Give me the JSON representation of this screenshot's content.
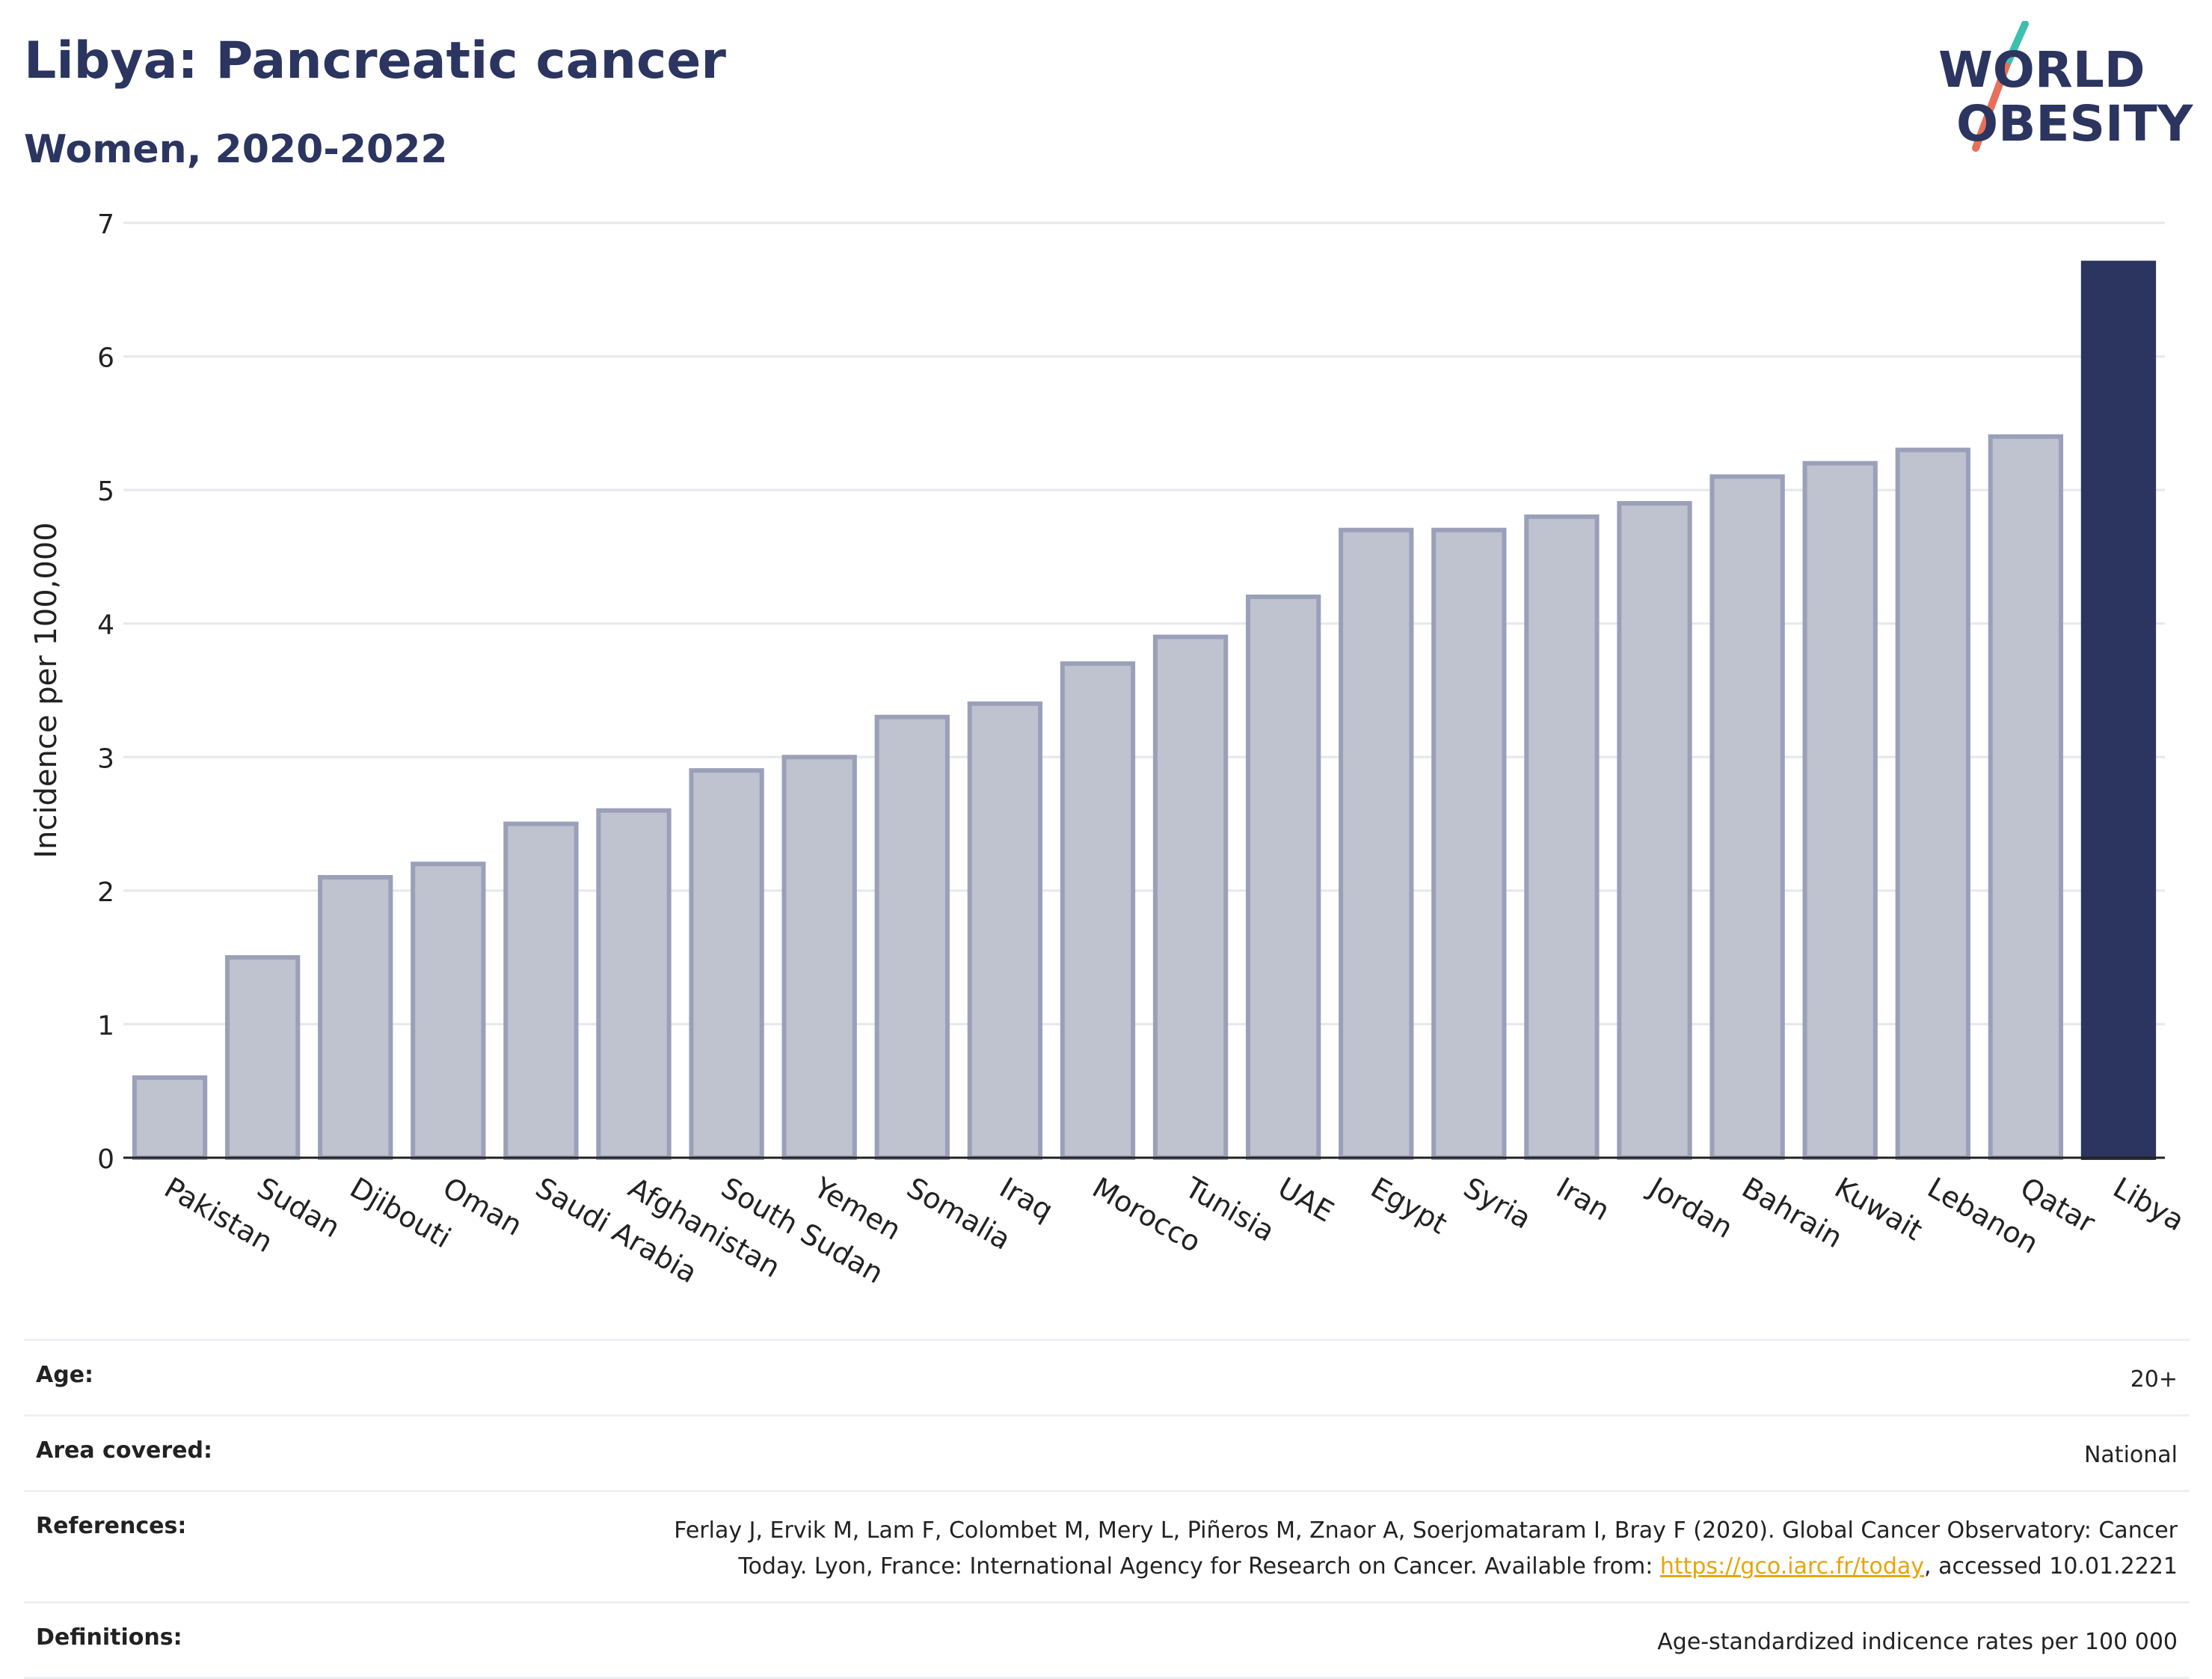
{
  "header": {
    "title": "Libya: Pancreatic cancer",
    "subtitle": "Women, 2020-2022"
  },
  "logo": {
    "line1": "WORLD",
    "line2": "OBESITY",
    "text_color": "#2b3560",
    "slash_top_color": "#3bbfb0",
    "slash_bottom_color": "#e8705a"
  },
  "chart_data": {
    "type": "bar",
    "ylabel": "Incidence per 100,000",
    "ylim": [
      0,
      7
    ],
    "yticks": [
      "0",
      "1",
      "2",
      "3",
      "4",
      "5",
      "6",
      "7"
    ],
    "grid": true,
    "categories": [
      "Pakistan",
      "Sudan",
      "Djibouti",
      "Oman",
      "Saudi Arabia",
      "Afghanistan",
      "South Sudan",
      "Yemen",
      "Somalia",
      "Iraq",
      "Morocco",
      "Tunisia",
      "UAE",
      "Egypt",
      "Syria",
      "Iran",
      "Jordan",
      "Bahrain",
      "Kuwait",
      "Lebanon",
      "Qatar",
      "Libya"
    ],
    "values": [
      0.6,
      1.5,
      2.1,
      2.2,
      2.5,
      2.6,
      2.9,
      3.0,
      3.3,
      3.4,
      3.7,
      3.9,
      4.2,
      4.7,
      4.7,
      4.8,
      4.9,
      5.1,
      5.2,
      5.3,
      5.4,
      6.7
    ],
    "highlight": "Libya",
    "bar_color": "#bfc2cf",
    "bar_border_color": "#9ba0b9",
    "highlight_color": "#2b3560"
  },
  "info": {
    "age_label": "Age:",
    "age_value": "20+",
    "area_label": "Area covered:",
    "area_value": "National",
    "references_label": "References:",
    "references_text1": "Ferlay J, Ervik M, Lam F, Colombet M, Mery L, Piñeros M, Znaor A, Soerjomataram I, Bray F (2020). Global Cancer Observatory: Cancer Today. Lyon, France: International Agency for Research on Cancer. Available from: ",
    "references_link": "https://gco.iarc.fr/today",
    "references_text2": ", accessed 10.01.2221",
    "definitions_label": "Definitions:",
    "definitions_value": "Age-standardized indicence rates per 100 000"
  }
}
